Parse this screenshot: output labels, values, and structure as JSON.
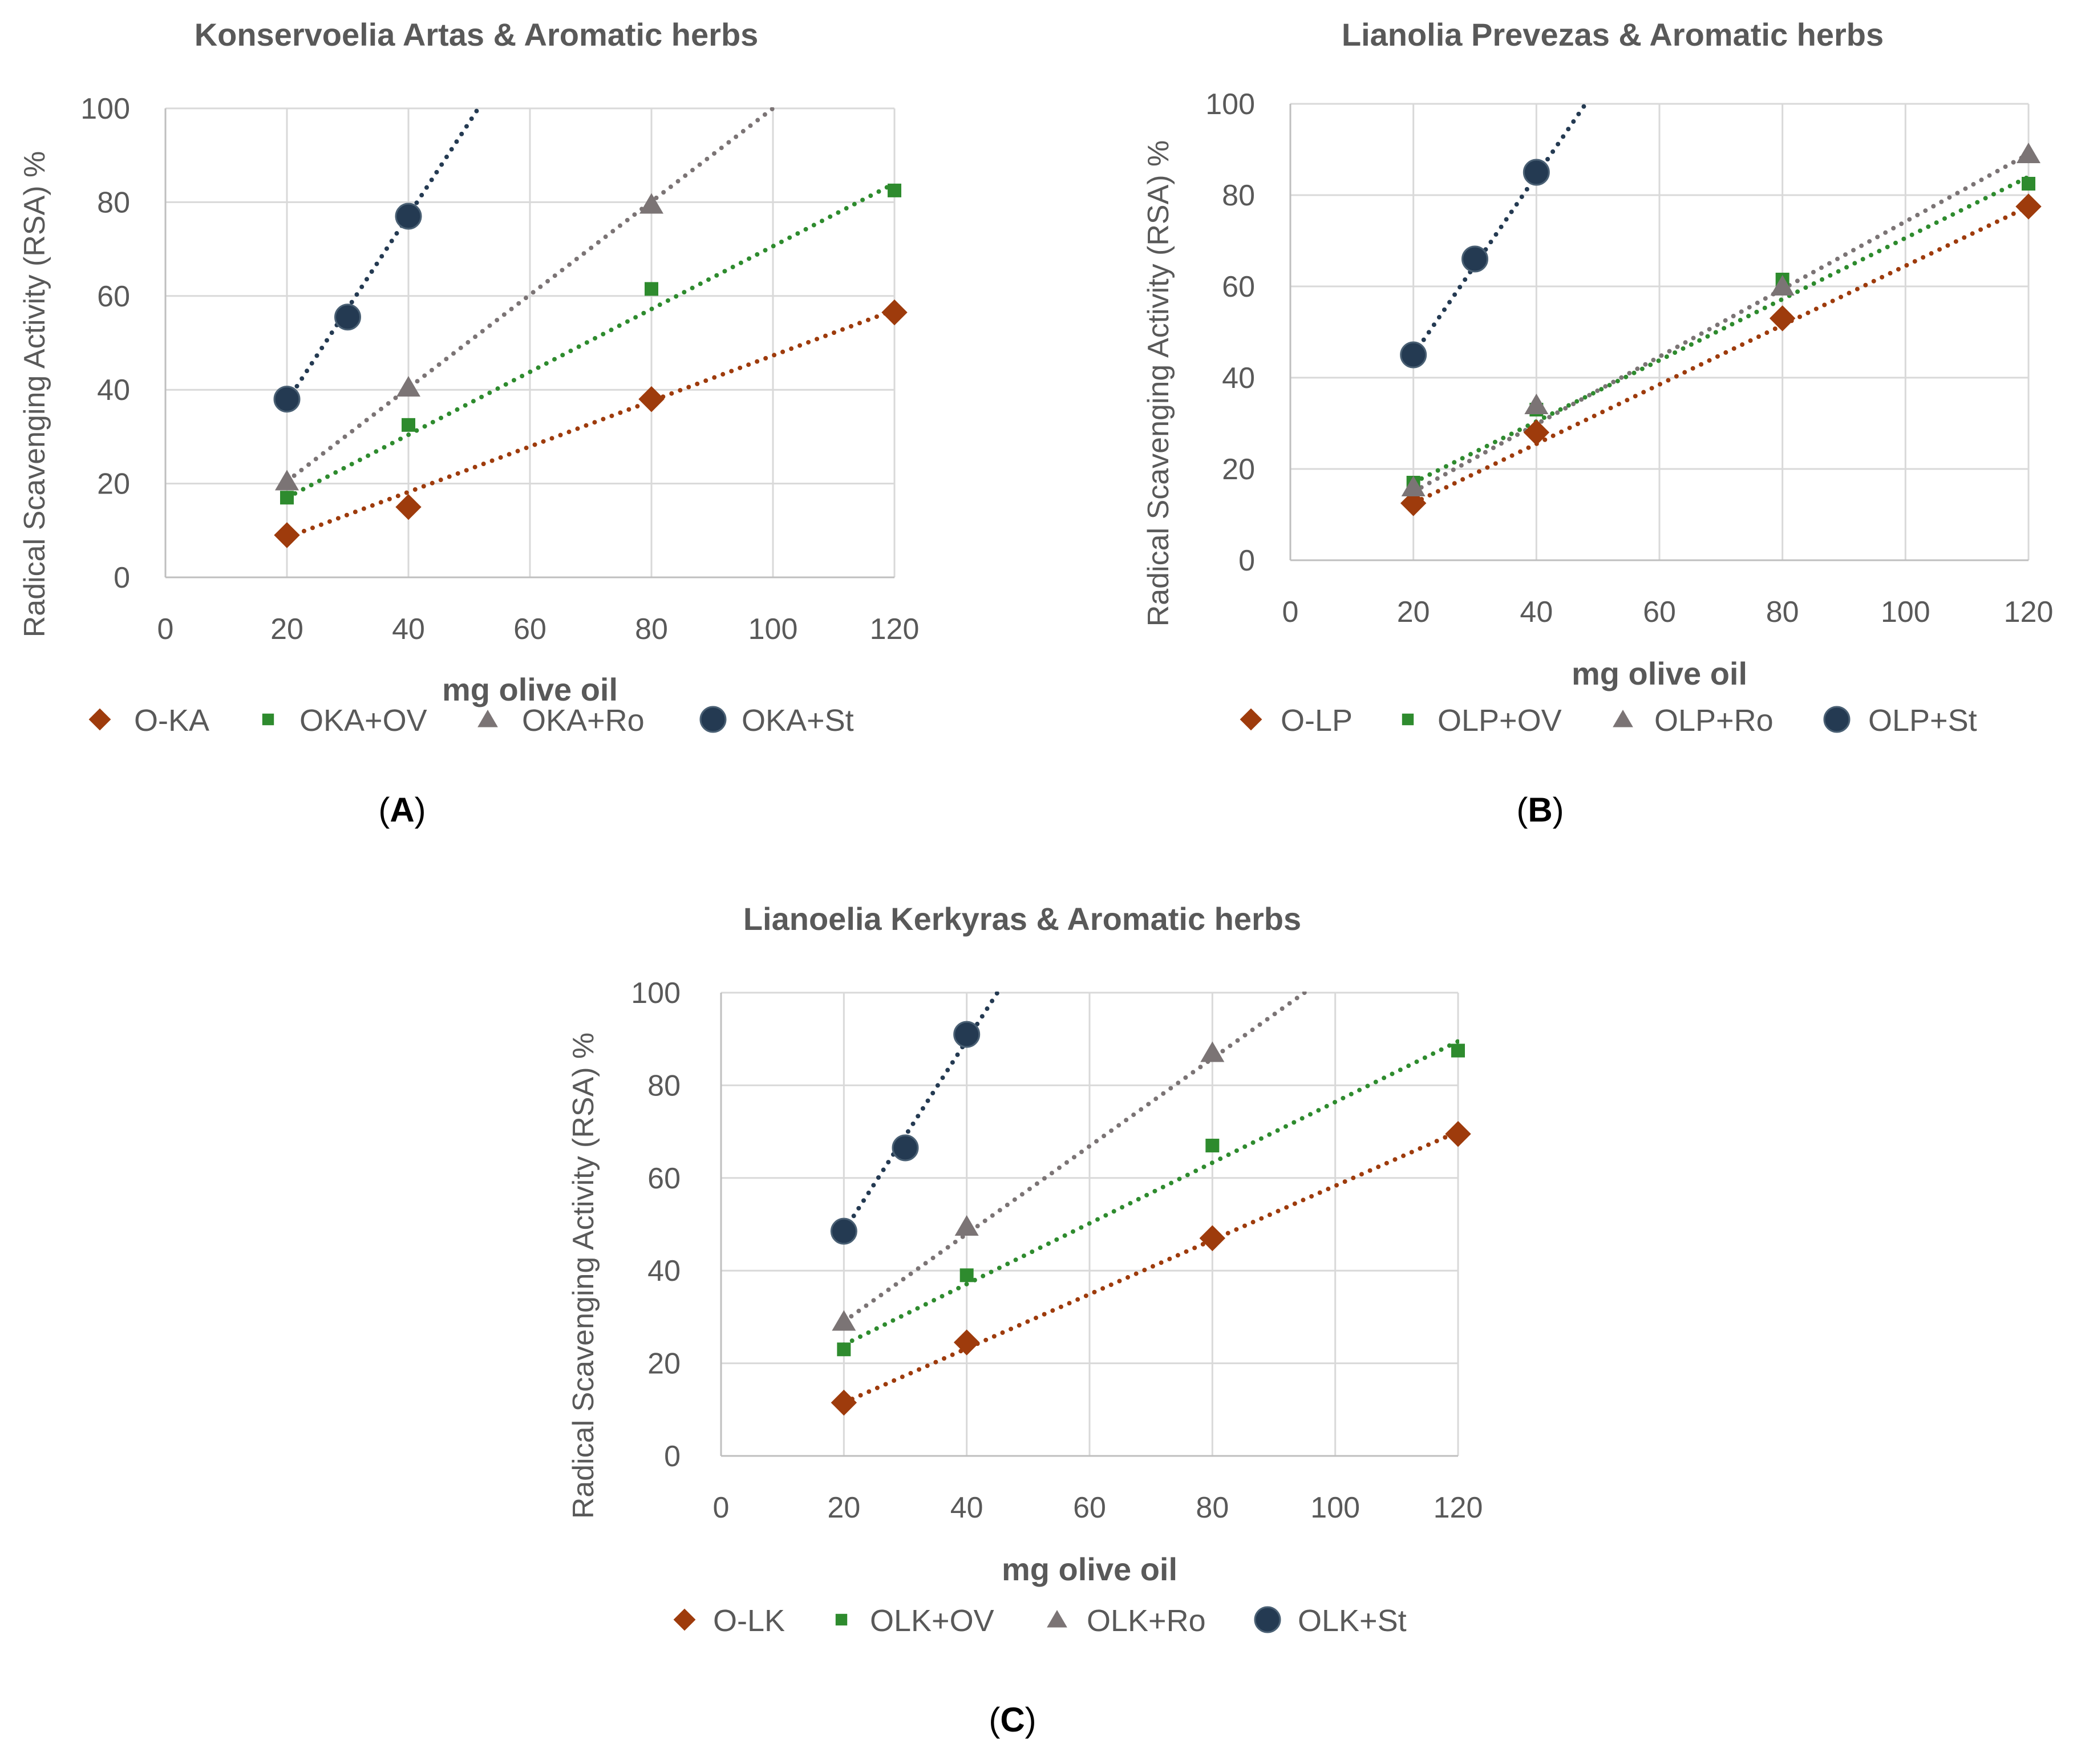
{
  "chart_data": [
    {
      "type": "scatter",
      "panel": "A",
      "title": "Konservoelia Artas & Aromatic herbs",
      "xlabel": "mg olive oil",
      "ylabel": "Radical Scavenging Activity (RSA) %",
      "xlim": [
        0,
        120
      ],
      "ylim": [
        0,
        100
      ],
      "xticks": [
        0,
        20,
        40,
        60,
        80,
        100,
        120
      ],
      "yticks": [
        0,
        20,
        40,
        60,
        80,
        100
      ],
      "grid": true,
      "trendline": "linear, dotted",
      "legend_position": "bottom",
      "series": [
        {
          "name": "O-KA",
          "marker": "diamond",
          "color": "#9e3b0c",
          "x": [
            20,
            40,
            80,
            120
          ],
          "y": [
            9,
            15,
            38,
            56.5
          ],
          "trend": [
            [
              20,
              8.5
            ],
            [
              120,
              57
            ]
          ]
        },
        {
          "name": "OKA+OV",
          "marker": "square",
          "color": "#2e8b2e",
          "x": [
            20,
            40,
            80,
            120
          ],
          "y": [
            17,
            32.5,
            61.5,
            82.5
          ],
          "trend": [
            [
              20,
              17
            ],
            [
              120,
              84
            ]
          ]
        },
        {
          "name": "OKA+Ro",
          "marker": "triangle",
          "color": "#7b7475",
          "x": [
            20,
            40,
            80
          ],
          "y": [
            20.5,
            40.5,
            79.5
          ],
          "trend": [
            [
              20,
              20.5
            ],
            [
              100,
              100
            ]
          ]
        },
        {
          "name": "OKA+St",
          "marker": "circle",
          "color": "#243a52",
          "x": [
            20,
            30,
            40
          ],
          "y": [
            38,
            55.5,
            77
          ],
          "trend": [
            [
              20,
              37.5
            ],
            [
              51.5,
              100
            ]
          ]
        }
      ]
    },
    {
      "type": "scatter",
      "panel": "B",
      "title": "Lianolia Prevezas & Aromatic herbs",
      "xlabel": "mg olive oil",
      "ylabel": "Radical Scavenging Activity (RSA) %",
      "xlim": [
        0,
        120
      ],
      "ylim": [
        0,
        100
      ],
      "xticks": [
        0,
        20,
        40,
        60,
        80,
        100,
        120
      ],
      "yticks": [
        0,
        20,
        40,
        60,
        80,
        100
      ],
      "grid": true,
      "trendline": "linear, dotted",
      "legend_position": "bottom",
      "series": [
        {
          "name": "O-LP",
          "marker": "diamond",
          "color": "#9e3b0c",
          "x": [
            20,
            40,
            80,
            120
          ],
          "y": [
            12.5,
            28,
            53,
            77.5
          ],
          "trend": [
            [
              20,
              12.5
            ],
            [
              120,
              77.5
            ]
          ]
        },
        {
          "name": "OLP+OV",
          "marker": "square",
          "color": "#2e8b2e",
          "x": [
            20,
            40,
            80,
            120
          ],
          "y": [
            17,
            33,
            61.5,
            82.5
          ],
          "trend": [
            [
              20,
              17
            ],
            [
              120,
              84
            ]
          ]
        },
        {
          "name": "OLP+Ro",
          "marker": "triangle",
          "color": "#7b7475",
          "x": [
            20,
            40,
            80,
            120
          ],
          "y": [
            16,
            34,
            60,
            89
          ],
          "trend": [
            [
              20,
              15
            ],
            [
              120,
              89
            ]
          ]
        },
        {
          "name": "OLP+St",
          "marker": "circle",
          "color": "#243a52",
          "x": [
            20,
            30,
            40
          ],
          "y": [
            45,
            66,
            85
          ],
          "trend": [
            [
              20,
              45
            ],
            [
              48,
              100
            ]
          ]
        }
      ]
    },
    {
      "type": "scatter",
      "panel": "C",
      "title": "Lianoelia Kerkyras & Aromatic herbs",
      "xlabel": "mg olive oil",
      "ylabel": "Radical Scavenging Activity (RSA) %",
      "xlim": [
        0,
        120
      ],
      "ylim": [
        0,
        100
      ],
      "xticks": [
        0,
        20,
        40,
        60,
        80,
        100,
        120
      ],
      "yticks": [
        0,
        20,
        40,
        60,
        80,
        100
      ],
      "grid": true,
      "trendline": "linear, dotted",
      "legend_position": "bottom",
      "series": [
        {
          "name": "O-LK",
          "marker": "diamond",
          "color": "#9e3b0c",
          "x": [
            20,
            40,
            80,
            120
          ],
          "y": [
            11.5,
            24.5,
            47,
            69.5
          ],
          "trend": [
            [
              20,
              11.5
            ],
            [
              120,
              70
            ]
          ]
        },
        {
          "name": "OLK+OV",
          "marker": "square",
          "color": "#2e8b2e",
          "x": [
            20,
            40,
            80,
            120
          ],
          "y": [
            23,
            39,
            67,
            87.5
          ],
          "trend": [
            [
              20,
              24
            ],
            [
              120,
              89.5
            ]
          ]
        },
        {
          "name": "OLK+Ro",
          "marker": "triangle",
          "color": "#7b7475",
          "x": [
            20,
            40,
            80
          ],
          "y": [
            29,
            49.5,
            87
          ],
          "trend": [
            [
              20,
              29
            ],
            [
              95,
              100
            ]
          ]
        },
        {
          "name": "OLK+St",
          "marker": "circle",
          "color": "#243a52",
          "x": [
            20,
            30,
            40
          ],
          "y": [
            48.5,
            66.5,
            91
          ],
          "trend": [
            [
              20,
              48.5
            ],
            [
              45,
              100
            ]
          ]
        }
      ]
    }
  ],
  "panel_labels": {
    "A": {
      "open": "(",
      "letter": "A",
      "close": ")"
    },
    "B": {
      "open": "(",
      "letter": "B",
      "close": ")"
    },
    "C": {
      "open": "(",
      "letter": "C",
      "close": ")"
    }
  }
}
